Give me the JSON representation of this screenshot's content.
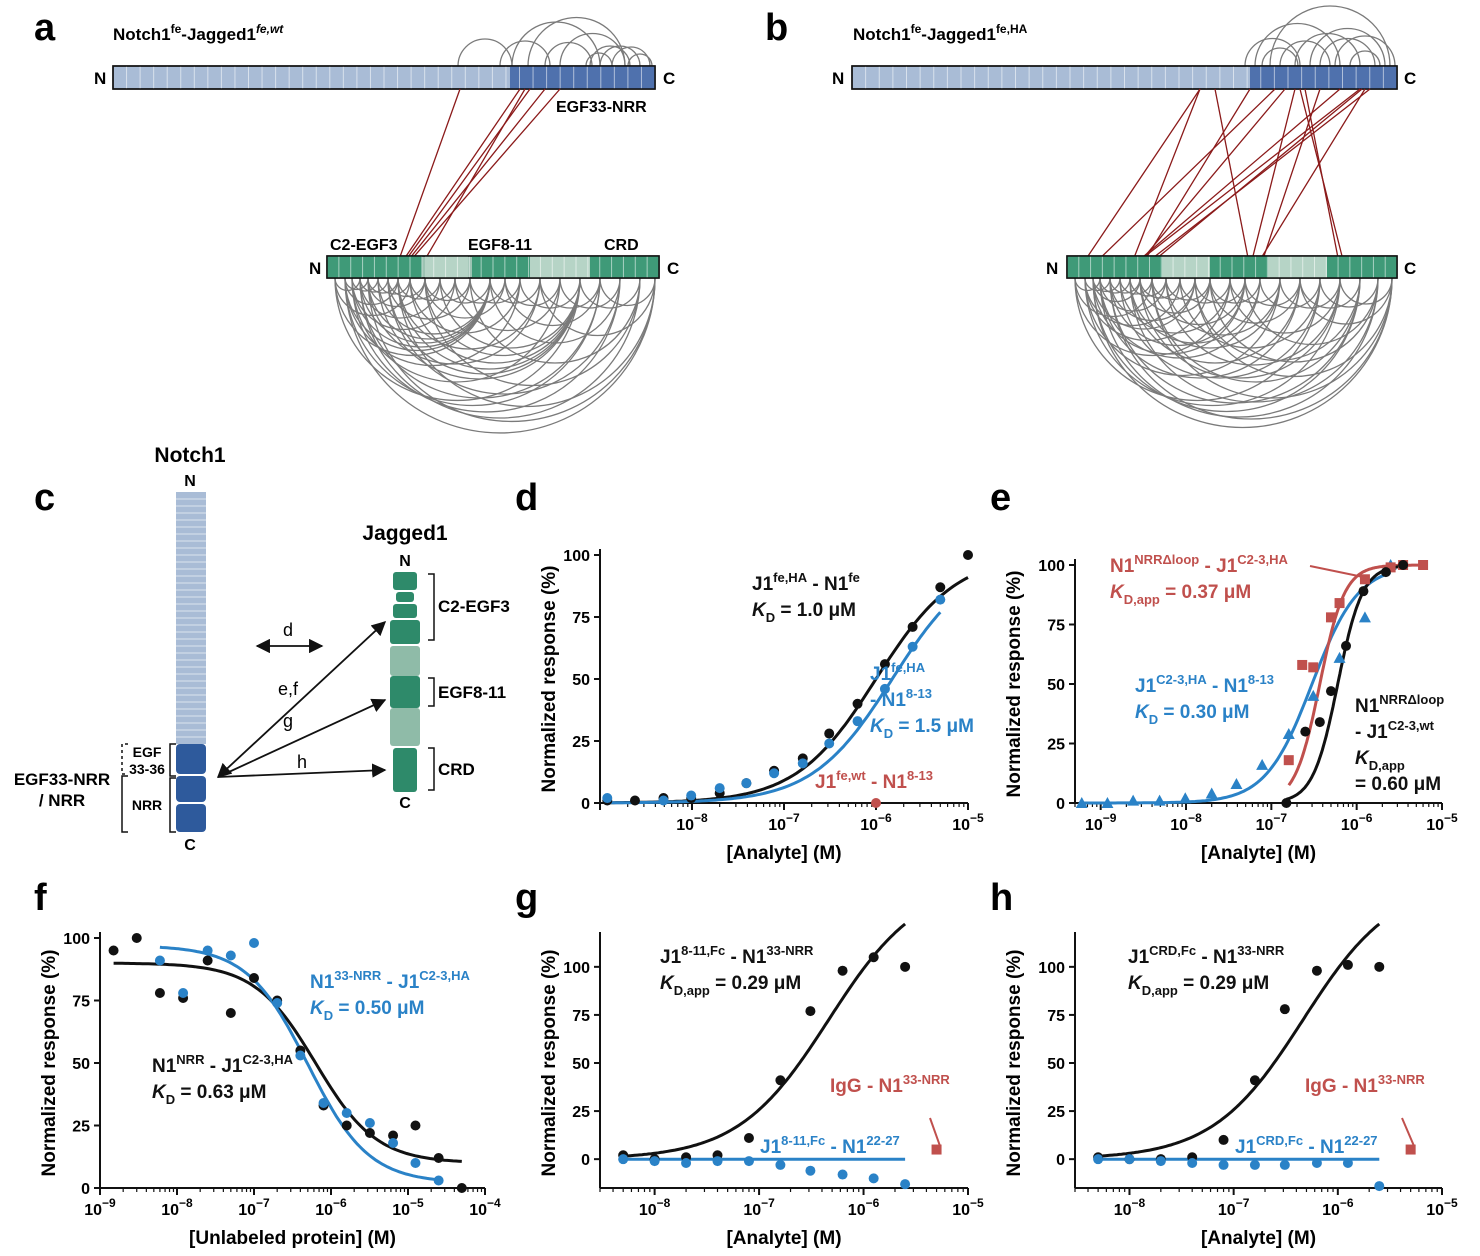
{
  "colors": {
    "black": "#111111",
    "blue": "#2a82c7",
    "red": "#c0504d",
    "notch_light": "#a9bcd6",
    "notch_dark": "#4f71ad",
    "jag_light": "#9dc3b3",
    "jag_dark": "#2e8a6a",
    "xlink": "#8b1a1a",
    "arc": "#7a7a7a"
  },
  "panels": {
    "a": {
      "label": "a",
      "title_main": "Notch1",
      "title_sup1": "fe",
      "title_mid": "-Jagged1",
      "title_sup2": "fe,wt",
      "top_n": "N",
      "top_c": "C",
      "top_region": "EGF33-NRR",
      "bot_n": "N",
      "bot_c": "C",
      "bot_regions": [
        "C2-EGF3",
        "EGF8-11",
        "CRD"
      ]
    },
    "b": {
      "label": "b",
      "title_main": "Notch1",
      "title_sup1": "fe",
      "title_mid": "-Jagged1",
      "title_sup2": "fe,HA",
      "top_n": "N",
      "top_c": "C",
      "bot_n": "N",
      "bot_c": "C"
    },
    "c": {
      "label": "c",
      "notch_title": "Notch1",
      "jag_title": "Jagged1",
      "n": "N",
      "c": "C",
      "egf_label": "EGF",
      "egf_range": "33-36",
      "nrr_label": "NRR",
      "left_label1": "EGF33-NRR",
      "left_label2": "/ NRR",
      "jag_regions": [
        "C2-EGF3",
        "EGF8-11",
        "CRD"
      ],
      "arrows": [
        "d",
        "e,f",
        "g",
        "h"
      ]
    },
    "d": {
      "label": "d"
    },
    "e": {
      "label": "e"
    },
    "f": {
      "label": "f"
    },
    "g": {
      "label": "g"
    },
    "h": {
      "label": "h"
    }
  },
  "chart_data": [
    {
      "panel": "d",
      "type": "scatter",
      "xscale": "log",
      "xlim": [
        1e-09,
        1e-05
      ],
      "ylim": [
        0,
        100
      ],
      "xlabel": "[Analyte] (M)",
      "ylabel": "Normalized response (%)",
      "yticks": [
        0,
        25,
        50,
        75,
        100
      ],
      "xtick_exponents": [
        -8,
        -7,
        -6,
        -5
      ],
      "series": [
        {
          "color": "black",
          "kd": 1e-06,
          "fit": true,
          "marker": "circle",
          "x": [
            1.2e-09,
            2.4e-09,
            4.9e-09,
            9.8e-09,
            2e-08,
            3.9e-08,
            7.8e-08,
            1.6e-07,
            3.1e-07,
            6.3e-07,
            1.25e-06,
            2.5e-06,
            5e-06,
            1e-05
          ],
          "y": [
            1,
            1,
            2,
            2,
            4,
            8,
            13,
            18,
            28,
            40,
            56,
            71,
            87,
            100
          ]
        },
        {
          "color": "blue",
          "kd": 1.5e-06,
          "fit": true,
          "marker": "circle",
          "x": [
            1.2e-09,
            4.9e-09,
            9.8e-09,
            2e-08,
            3.9e-08,
            7.8e-08,
            1.6e-07,
            3.1e-07,
            6.3e-07,
            1.25e-06,
            2.5e-06,
            5e-06
          ],
          "y": [
            2,
            1,
            3,
            6,
            8,
            12,
            16,
            24,
            33,
            46,
            63,
            82
          ]
        },
        {
          "color": "red",
          "fit": false,
          "marker": "circle",
          "x": [
            1e-06
          ],
          "y": [
            0
          ]
        }
      ],
      "annotations": [
        {
          "color": "black",
          "l1_main": "J1",
          "l1_sup": "fe,HA",
          "l1_tail": " - N1",
          "l1_sup2": "fe",
          "l2_k": "K",
          "l2_sub": "D",
          "l2_tail": " = 1.0 μM"
        },
        {
          "color": "blue",
          "l1_main": "J1",
          "l1_sup": "fe,HA",
          "l2_head": "- N1",
          "l2_sup": "8-13",
          "l3_k": "K",
          "l3_sub": "D",
          "l3_tail": " = 1.5 μM"
        },
        {
          "color": "red",
          "l1_main": "J1",
          "l1_sup": "fe,wt",
          "l1_tail": " - N1",
          "l1_sup2": "8-13"
        }
      ]
    },
    {
      "panel": "e",
      "type": "scatter",
      "xscale": "log",
      "xlim": [
        5e-10,
        1e-05
      ],
      "ylim": [
        0,
        100
      ],
      "xlabel": "[Analyte] (M)",
      "ylabel": "Normalized response (%)",
      "yticks": [
        0,
        25,
        50,
        75,
        100
      ],
      "xtick_exponents": [
        -9,
        -8,
        -7,
        -6,
        -5
      ],
      "series": [
        {
          "color": "blue",
          "kd": 3e-07,
          "hill": 1.6,
          "fit": true,
          "marker": "triangle",
          "x": [
            6e-10,
            1.2e-09,
            2.4e-09,
            4.9e-09,
            9.8e-09,
            2e-08,
            3.9e-08,
            7.8e-08,
            1.6e-07,
            3.1e-07,
            6.3e-07,
            1.25e-06,
            2.5e-06
          ],
          "y": [
            0,
            0,
            1,
            1,
            2,
            4,
            8,
            16,
            29,
            45,
            61,
            78,
            100
          ]
        },
        {
          "color": "red",
          "kd": 3.7e-07,
          "hill": 3.0,
          "fit": true,
          "marker": "square",
          "x": [
            1.6e-07,
            2.3e-07,
            3.1e-07,
            5e-07,
            6.3e-07,
            1.25e-06,
            2.5e-06,
            3.5e-06,
            6e-06
          ],
          "y": [
            18,
            58,
            57,
            78,
            84,
            94,
            99,
            100,
            100
          ]
        },
        {
          "color": "black",
          "kd": 6e-07,
          "hill": 3.0,
          "fit": true,
          "marker": "circle",
          "x": [
            1.5e-07,
            2.5e-07,
            3.7e-07,
            5e-07,
            7.5e-07,
            1.2e-06,
            2.2e-06,
            3.5e-06
          ],
          "y": [
            0,
            30,
            34,
            47,
            66,
            89,
            97,
            100
          ]
        }
      ],
      "annotations": [
        {
          "color": "red",
          "l1_main": "N1",
          "l1_sup": "NRRΔloop",
          "l1_tail": " - J1",
          "l1_sup2": "C2-3,HA",
          "l2_k": "K",
          "l2_sub": "D,app",
          "l2_tail": " = 0.37 μM"
        },
        {
          "color": "blue",
          "l1_main": "J1",
          "l1_sup": "C2-3,HA",
          "l1_tail": " - N1",
          "l1_sup2": "8-13",
          "l2_k": "K",
          "l2_sub": "D",
          "l2_tail": " = 0.30 μM"
        },
        {
          "color": "black",
          "l1_main": "N1",
          "l1_sup": "NRRΔloop",
          "l2_head": "- J1",
          "l2_sup": "C2-3,wt",
          "l3_k": "K",
          "l3_sub": "D,app",
          "l4": "= 0.60 μM"
        }
      ]
    },
    {
      "panel": "f",
      "type": "scatter",
      "xscale": "log",
      "xlim": [
        1e-09,
        0.0001
      ],
      "ylim": [
        0,
        100
      ],
      "xlabel": "[Unlabeled protein] (M)",
      "ylabel": "Normalized response (%)",
      "yticks": [
        0,
        25,
        50,
        75,
        100
      ],
      "xtick_exponents": [
        -9,
        -8,
        -7,
        -6,
        -5,
        -4
      ],
      "series": [
        {
          "color": "black",
          "ic50": 6.3e-07,
          "top": 90,
          "bottom": 10,
          "fit": true,
          "marker": "circle",
          "x": [
            1.5e-09,
            3e-09,
            6e-09,
            1.2e-08,
            2.5e-08,
            5e-08,
            1e-07,
            2e-07,
            4e-07,
            8e-07,
            1.6e-06,
            3.2e-06,
            6.4e-06,
            1.25e-05,
            2.5e-05,
            5e-05
          ],
          "y": [
            95,
            100,
            78,
            76,
            91,
            70,
            84,
            75,
            55,
            33,
            25,
            22,
            21,
            25,
            12,
            0
          ]
        },
        {
          "color": "blue",
          "ic50": 5e-07,
          "top": 97,
          "bottom": 2,
          "fit": true,
          "marker": "circle",
          "x": [
            6e-09,
            1.2e-08,
            2.5e-08,
            5e-08,
            1e-07,
            2e-07,
            4e-07,
            8e-07,
            1.6e-06,
            3.2e-06,
            6.4e-06,
            1.25e-05,
            2.5e-05
          ],
          "y": [
            91,
            78,
            95,
            93,
            98,
            74,
            53,
            34,
            30,
            26,
            18,
            10,
            3
          ]
        }
      ],
      "annotations": [
        {
          "color": "blue",
          "l1_main": "N1",
          "l1_sup": "33-NRR",
          "l1_tail": " - J1",
          "l1_sup2": "C2-3,HA",
          "l2_k": "K",
          "l2_sub": "D",
          "l2_tail": " = 0.50 μM"
        },
        {
          "color": "black",
          "l1_main": "N1",
          "l1_sup": "NRR",
          "l1_tail": " - J1",
          "l1_sup2": "C2-3,HA",
          "l2_k": "K",
          "l2_sub": "D",
          "l2_tail": " = 0.63 μM"
        }
      ]
    },
    {
      "panel": "g",
      "type": "scatter",
      "xscale": "log",
      "xlim": [
        3e-09,
        1e-05
      ],
      "ylim": [
        -15,
        115
      ],
      "xlabel": "[Analyte] (M)",
      "ylabel": "Normalized response (%)",
      "yticks": [
        0,
        25,
        50,
        75,
        100
      ],
      "xtick_exponents": [
        -8,
        -7,
        -6,
        -5
      ],
      "series": [
        {
          "color": "black",
          "kd": 2.9e-07,
          "scale": 1.45,
          "fit": true,
          "marker": "circle",
          "x": [
            5e-09,
            1e-08,
            2e-08,
            4e-08,
            8e-08,
            1.6e-07,
            3.1e-07,
            6.3e-07,
            1.25e-06,
            2.5e-06
          ],
          "y": [
            2,
            0,
            1,
            2,
            11,
            41,
            77,
            98,
            105,
            100
          ]
        },
        {
          "color": "blue",
          "fit": true,
          "flat": 0,
          "marker": "circle",
          "x": [
            5e-09,
            1e-08,
            2e-08,
            4e-08,
            8e-08,
            1.6e-07,
            3.1e-07,
            6.3e-07,
            1.25e-06,
            2.5e-06
          ],
          "y": [
            0,
            -1,
            -2,
            -1,
            -1,
            -3,
            -6,
            -8,
            -10,
            -13
          ]
        },
        {
          "color": "red",
          "fit": false,
          "marker": "square",
          "x": [
            5e-06
          ],
          "y": [
            5
          ]
        }
      ],
      "annotations": [
        {
          "color": "black",
          "l1_main": "J1",
          "l1_sup": "8-11,Fc",
          "l1_tail": " - N1",
          "l1_sup2": "33-NRR",
          "l2_k": "K",
          "l2_sub": "D,app",
          "l2_tail": " = 0.29 μM"
        },
        {
          "color": "red",
          "l1_main": "IgG - N1",
          "l1_sup": "33-NRR"
        },
        {
          "color": "blue",
          "l1_main": "J1",
          "l1_sup": "8-11,Fc",
          "l1_tail": " - N1",
          "l1_sup2": "22-27"
        }
      ]
    },
    {
      "panel": "h",
      "type": "scatter",
      "xscale": "log",
      "xlim": [
        3e-09,
        1e-05
      ],
      "ylim": [
        -15,
        115
      ],
      "xlabel": "[Analyte] (M)",
      "ylabel": "Normalized response (%)",
      "yticks": [
        0,
        25,
        50,
        75,
        100
      ],
      "xtick_exponents": [
        -8,
        -7,
        -6,
        -5
      ],
      "series": [
        {
          "color": "black",
          "kd": 2.9e-07,
          "scale": 1.45,
          "fit": true,
          "marker": "circle",
          "x": [
            5e-09,
            1e-08,
            2e-08,
            4e-08,
            8e-08,
            1.6e-07,
            3.1e-07,
            6.3e-07,
            1.25e-06,
            2.5e-06
          ],
          "y": [
            1,
            0,
            0,
            1,
            10,
            41,
            78,
            98,
            101,
            100
          ]
        },
        {
          "color": "blue",
          "fit": true,
          "flat": 0,
          "marker": "circle",
          "x": [
            5e-09,
            1e-08,
            2e-08,
            4e-08,
            8e-08,
            1.6e-07,
            3.1e-07,
            6.3e-07,
            1.25e-06,
            2.5e-06
          ],
          "y": [
            0,
            0,
            -1,
            -2,
            -3,
            -3,
            -3,
            -2,
            -2,
            -14
          ]
        },
        {
          "color": "red",
          "fit": false,
          "marker": "square",
          "x": [
            5e-06
          ],
          "y": [
            5
          ]
        }
      ],
      "annotations": [
        {
          "color": "black",
          "l1_main": "J1",
          "l1_sup": "CRD,Fc",
          "l1_tail": " - N1",
          "l1_sup2": "33-NRR",
          "l2_k": "K",
          "l2_sub": "D,app",
          "l2_tail": " = 0.29 μM"
        },
        {
          "color": "red",
          "l1_main": "IgG - N1",
          "l1_sup": "33-NRR"
        },
        {
          "color": "blue",
          "l1_main": "J1",
          "l1_sup": "CRD,Fc",
          "l1_tail": " - N1",
          "l1_sup2": "22-27"
        }
      ]
    }
  ]
}
